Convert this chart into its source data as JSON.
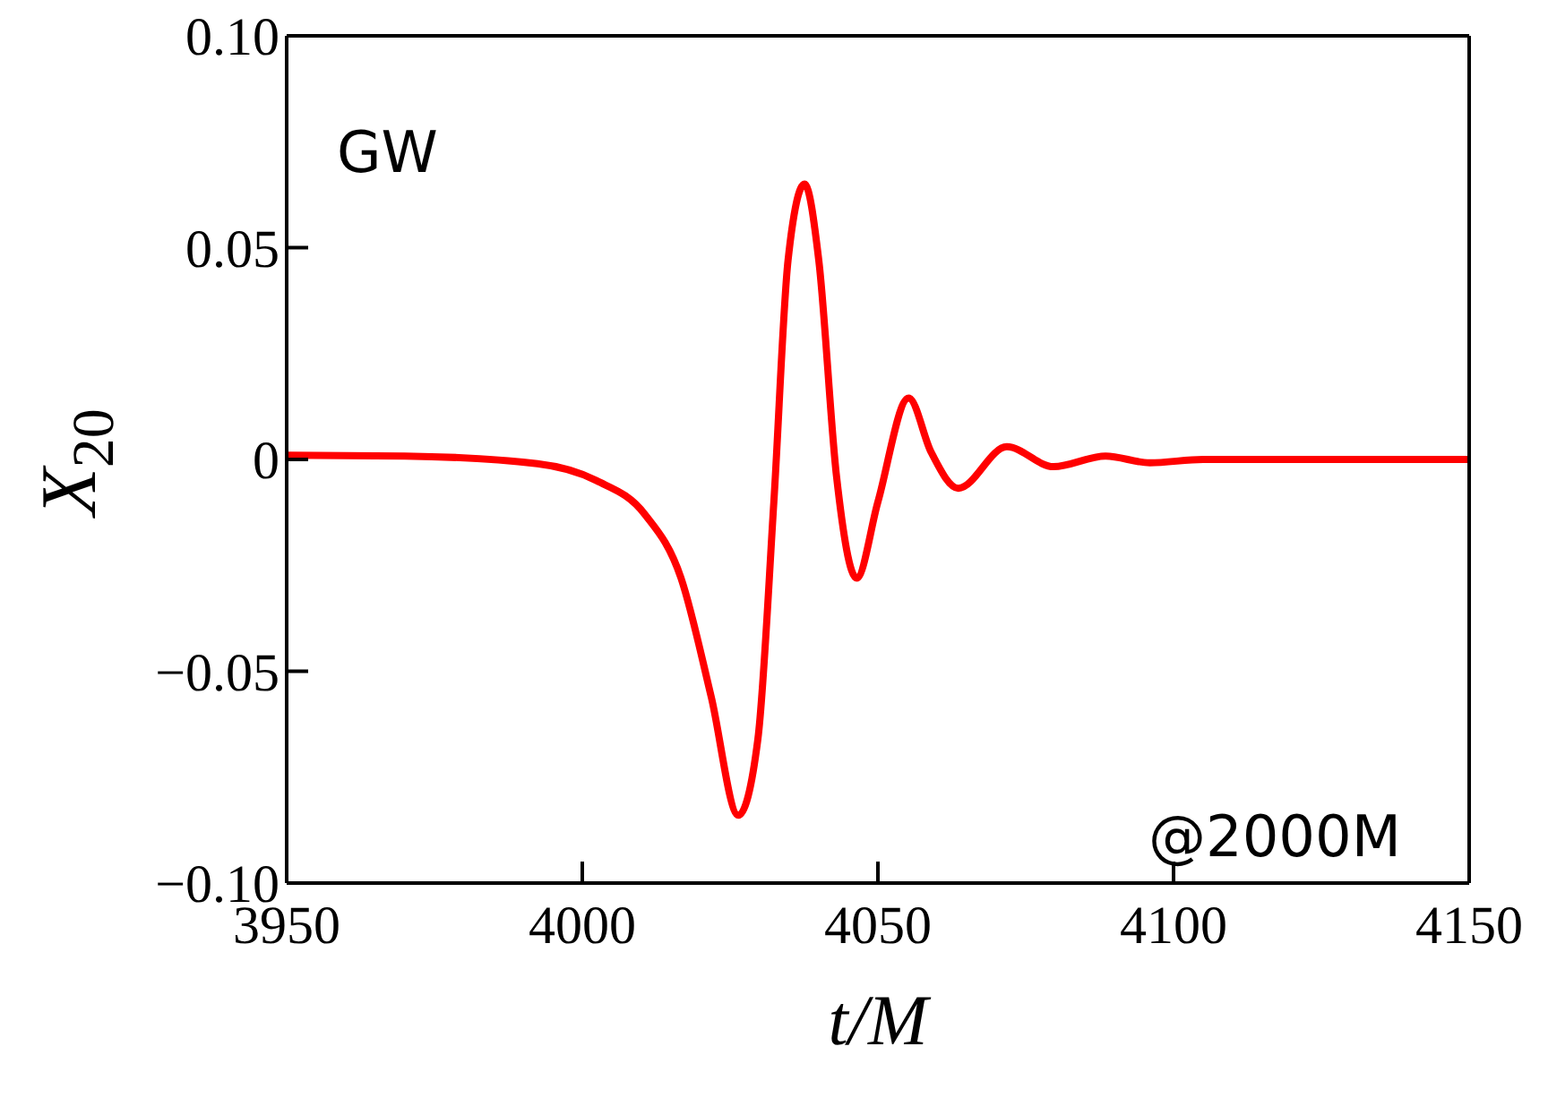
{
  "chart_data": {
    "type": "line",
    "xlabel": "t/M",
    "ylabel": "X$_{20}$",
    "annotations": [
      "GW",
      "@2000M"
    ],
    "x": [
      3950,
      3970,
      3992.4,
      4002.4,
      4010.6,
      4016.7,
      4021.8,
      4026.4,
      4029.7,
      4032.4,
      4034.8,
      4037.6,
      4040,
      4043,
      4046.4,
      4050,
      4055.2,
      4059,
      4063.6,
      4071.8,
      4079.7,
      4088.5,
      4096,
      4105,
      4120,
      4150
    ],
    "series": [
      {
        "color": "#ff0000",
        "values": [
          0.001,
          0.0008,
          -0.001,
          -0.005,
          -0.013,
          -0.028,
          -0.056,
          -0.084,
          -0.066,
          -0.01,
          0.047,
          0.065,
          0.047,
          -0.004,
          -0.028,
          -0.01,
          0.0145,
          0.0017,
          -0.0068,
          0.003,
          -0.0017,
          0.0008,
          -0.0008,
          0,
          0,
          0
        ]
      }
    ],
    "xlim": [
      3950,
      4150
    ],
    "xticks": [
      3950,
      4000,
      4050,
      4100,
      4150
    ],
    "ylim": [
      -0.1,
      0.1
    ],
    "yticks": [
      {
        "value": -0.1,
        "label": "−0.10"
      },
      {
        "value": -0.05,
        "label": "−0.05"
      },
      {
        "value": 0,
        "label": "0"
      },
      {
        "value": 0.05,
        "label": "0.05"
      },
      {
        "value": 0.1,
        "label": "0.10"
      }
    ],
    "grid": false,
    "legend": false,
    "marker": "none",
    "line_style": "solid"
  }
}
